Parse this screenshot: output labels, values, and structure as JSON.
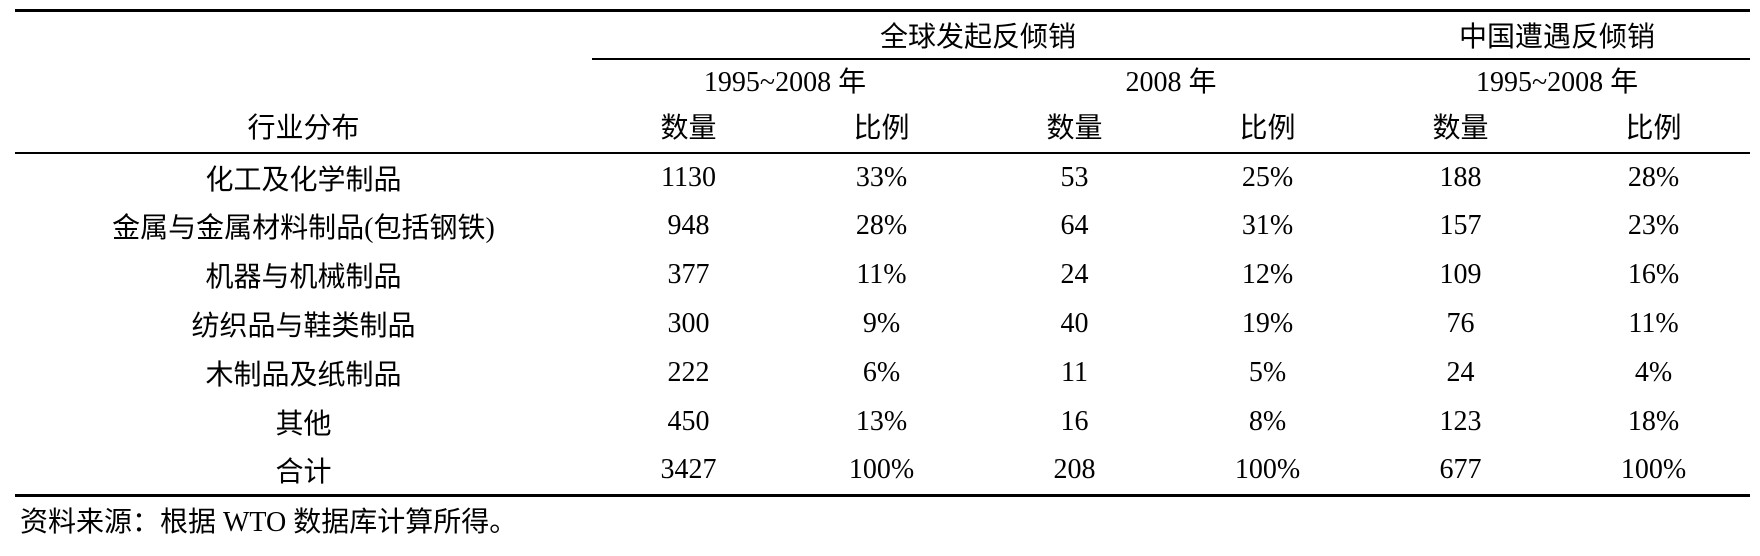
{
  "colors": {
    "text": "#000000",
    "background": "#ffffff",
    "rule": "#000000"
  },
  "table": {
    "industry_column_header": "行业分布",
    "group_headers": {
      "global": "全球发起反倾销",
      "china": "中国遭遇反倾销"
    },
    "period_headers": [
      "1995~2008 年",
      "2008 年",
      "1995~2008 年"
    ],
    "measure_headers": [
      "数量",
      "比例",
      "数量",
      "比例",
      "数量",
      "比例"
    ],
    "rows": [
      {
        "industry": "化工及化学制品",
        "values": [
          "1130",
          "33%",
          "53",
          "25%",
          "188",
          "28%"
        ]
      },
      {
        "industry": "金属与金属材料制品(包括钢铁)",
        "values": [
          "948",
          "28%",
          "64",
          "31%",
          "157",
          "23%"
        ]
      },
      {
        "industry": "机器与机械制品",
        "values": [
          "377",
          "11%",
          "24",
          "12%",
          "109",
          "16%"
        ]
      },
      {
        "industry": "纺织品与鞋类制品",
        "values": [
          "300",
          "9%",
          "40",
          "19%",
          "76",
          "11%"
        ]
      },
      {
        "industry": "木制品及纸制品",
        "values": [
          "222",
          "6%",
          "11",
          "5%",
          "24",
          "4%"
        ]
      },
      {
        "industry": "其他",
        "values": [
          "450",
          "13%",
          "16",
          "8%",
          "123",
          "18%"
        ]
      },
      {
        "industry": "合计",
        "values": [
          "3427",
          "100%",
          "208",
          "100%",
          "677",
          "100%"
        ]
      }
    ],
    "source_note": "资料来源：根据 WTO 数据库计算所得。"
  }
}
